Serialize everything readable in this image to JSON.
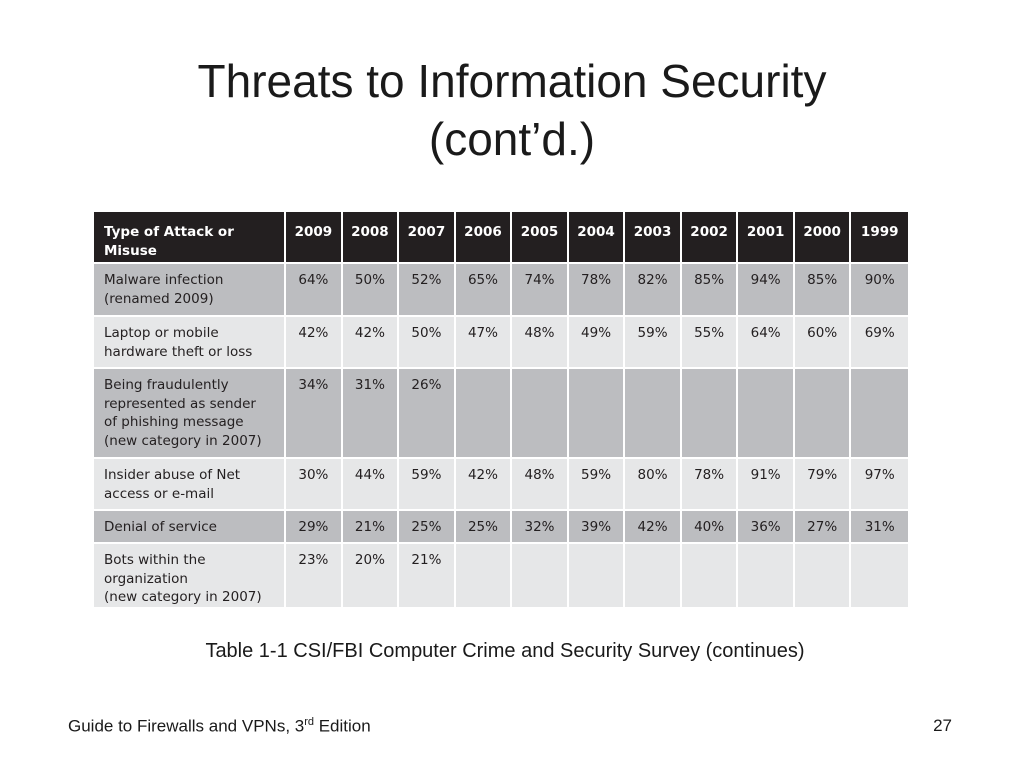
{
  "slide": {
    "title_line1": "Threats to Information Security",
    "title_line2": "(cont’d.)"
  },
  "table": {
    "header": {
      "type_label": "Type of Attack or\nMisuse",
      "years": [
        "2009",
        "2008",
        "2007",
        "2006",
        "2005",
        "2004",
        "2003",
        "2002",
        "2001",
        "2000",
        "1999"
      ]
    },
    "rows": [
      {
        "type": "Malware infection\n(renamed 2009)",
        "values": [
          "64%",
          "50%",
          "52%",
          "65%",
          "74%",
          "78%",
          "82%",
          "85%",
          "94%",
          "85%",
          "90%"
        ]
      },
      {
        "type": "Laptop or mobile\nhardware theft or loss",
        "values": [
          "42%",
          "42%",
          "50%",
          "47%",
          "48%",
          "49%",
          "59%",
          "55%",
          "64%",
          "60%",
          "69%"
        ]
      },
      {
        "type": "Being fraudulently\nrepresented as sender\nof phishing message\n(new category in 2007)",
        "values": [
          "34%",
          "31%",
          "26%",
          "",
          "",
          "",
          "",
          "",
          "",
          "",
          ""
        ]
      },
      {
        "type": "Insider abuse of Net\naccess or e-mail",
        "values": [
          "30%",
          "44%",
          "59%",
          "42%",
          "48%",
          "59%",
          "80%",
          "78%",
          "91%",
          "79%",
          "97%"
        ]
      },
      {
        "type": "Denial of service",
        "values": [
          "29%",
          "21%",
          "25%",
          "25%",
          "32%",
          "39%",
          "42%",
          "40%",
          "36%",
          "27%",
          "31%"
        ]
      },
      {
        "type": "Bots within the organization\n(new category in 2007)",
        "values": [
          "23%",
          "20%",
          "21%",
          "",
          "",
          "",
          "",
          "",
          "",
          "",
          ""
        ]
      }
    ]
  },
  "caption": "Table 1-1 CSI/FBI Computer Crime and Security Survey (continues)",
  "footer": {
    "book_prefix": "Guide to Firewalls and VPNs, 3",
    "book_sup": "rd",
    "book_suffix": " Edition",
    "page_number": "27"
  },
  "colors": {
    "header_bg": "#231f20",
    "row_dark": "#bcbdc0",
    "row_light": "#e6e7e8"
  }
}
